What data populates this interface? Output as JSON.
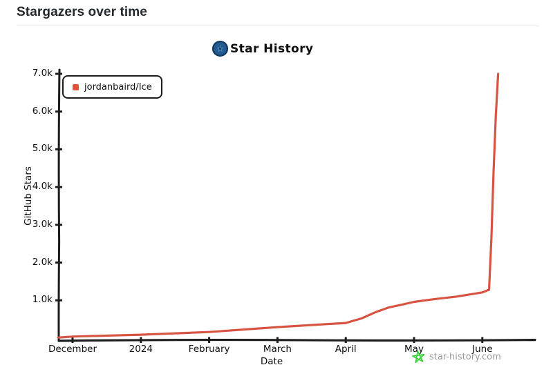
{
  "header": {
    "title": "Stargazers over time"
  },
  "chart": {
    "title": "Star History",
    "legend_label": "jordanbaird/Ice",
    "ylabel": "GitHub Stars",
    "xlabel": "Date"
  },
  "watermark": {
    "text": "star-history.com"
  },
  "colors": {
    "line": "#d75442",
    "legend_marker": "#e2523d",
    "axis": "#1c1c1c",
    "heading_text": "#24292f",
    "divider": "#e7e9ec",
    "logo_blue": "#255a8e",
    "logo_blue_dark": "#0f3a63",
    "logo_blue_light": "#4583b8",
    "watermark_star": "#3ed13e",
    "watermark_text": "#9a9a9a"
  },
  "chart_data": {
    "type": "line",
    "title": "Star History",
    "xlabel": "Date",
    "ylabel": "GitHub Stars",
    "ylim": [
      0,
      7000
    ],
    "grid": false,
    "legend_position": "top-left",
    "style": "xkcd-hand-drawn",
    "y_ticks": [
      {
        "label": "7.0k",
        "value": 7000
      },
      {
        "label": "6.0k",
        "value": 6000
      },
      {
        "label": "5.0k",
        "value": 5000
      },
      {
        "label": "4.0k",
        "value": 4000
      },
      {
        "label": "3.0k",
        "value": 3000
      },
      {
        "label": "2.0k",
        "value": 2000
      },
      {
        "label": "1.0k",
        "value": 1000
      }
    ],
    "x_ticks": [
      {
        "label": "December",
        "date": "2023-12-01"
      },
      {
        "label": "2024",
        "date": "2024-01-01"
      },
      {
        "label": "February",
        "date": "2024-02-01"
      },
      {
        "label": "March",
        "date": "2024-03-01"
      },
      {
        "label": "April",
        "date": "2024-04-01"
      },
      {
        "label": "May",
        "date": "2024-05-01"
      },
      {
        "label": "June",
        "date": "2024-06-01"
      }
    ],
    "series": [
      {
        "name": "jordanbaird/Ice",
        "color": "#d75442",
        "points": [
          [
            "2023-11-25",
            15
          ],
          [
            "2023-12-01",
            40
          ],
          [
            "2024-01-01",
            90
          ],
          [
            "2024-02-01",
            160
          ],
          [
            "2024-03-01",
            290
          ],
          [
            "2024-03-20",
            360
          ],
          [
            "2024-04-01",
            400
          ],
          [
            "2024-04-08",
            520
          ],
          [
            "2024-04-14",
            680
          ],
          [
            "2024-04-20",
            810
          ],
          [
            "2024-04-27",
            900
          ],
          [
            "2024-05-01",
            960
          ],
          [
            "2024-05-10",
            1030
          ],
          [
            "2024-05-20",
            1100
          ],
          [
            "2024-06-01",
            1210
          ],
          [
            "2024-06-04",
            1280
          ],
          [
            "2024-06-05",
            2600
          ],
          [
            "2024-06-06",
            4400
          ],
          [
            "2024-06-07",
            5900
          ],
          [
            "2024-06-08",
            7000
          ]
        ]
      }
    ]
  }
}
